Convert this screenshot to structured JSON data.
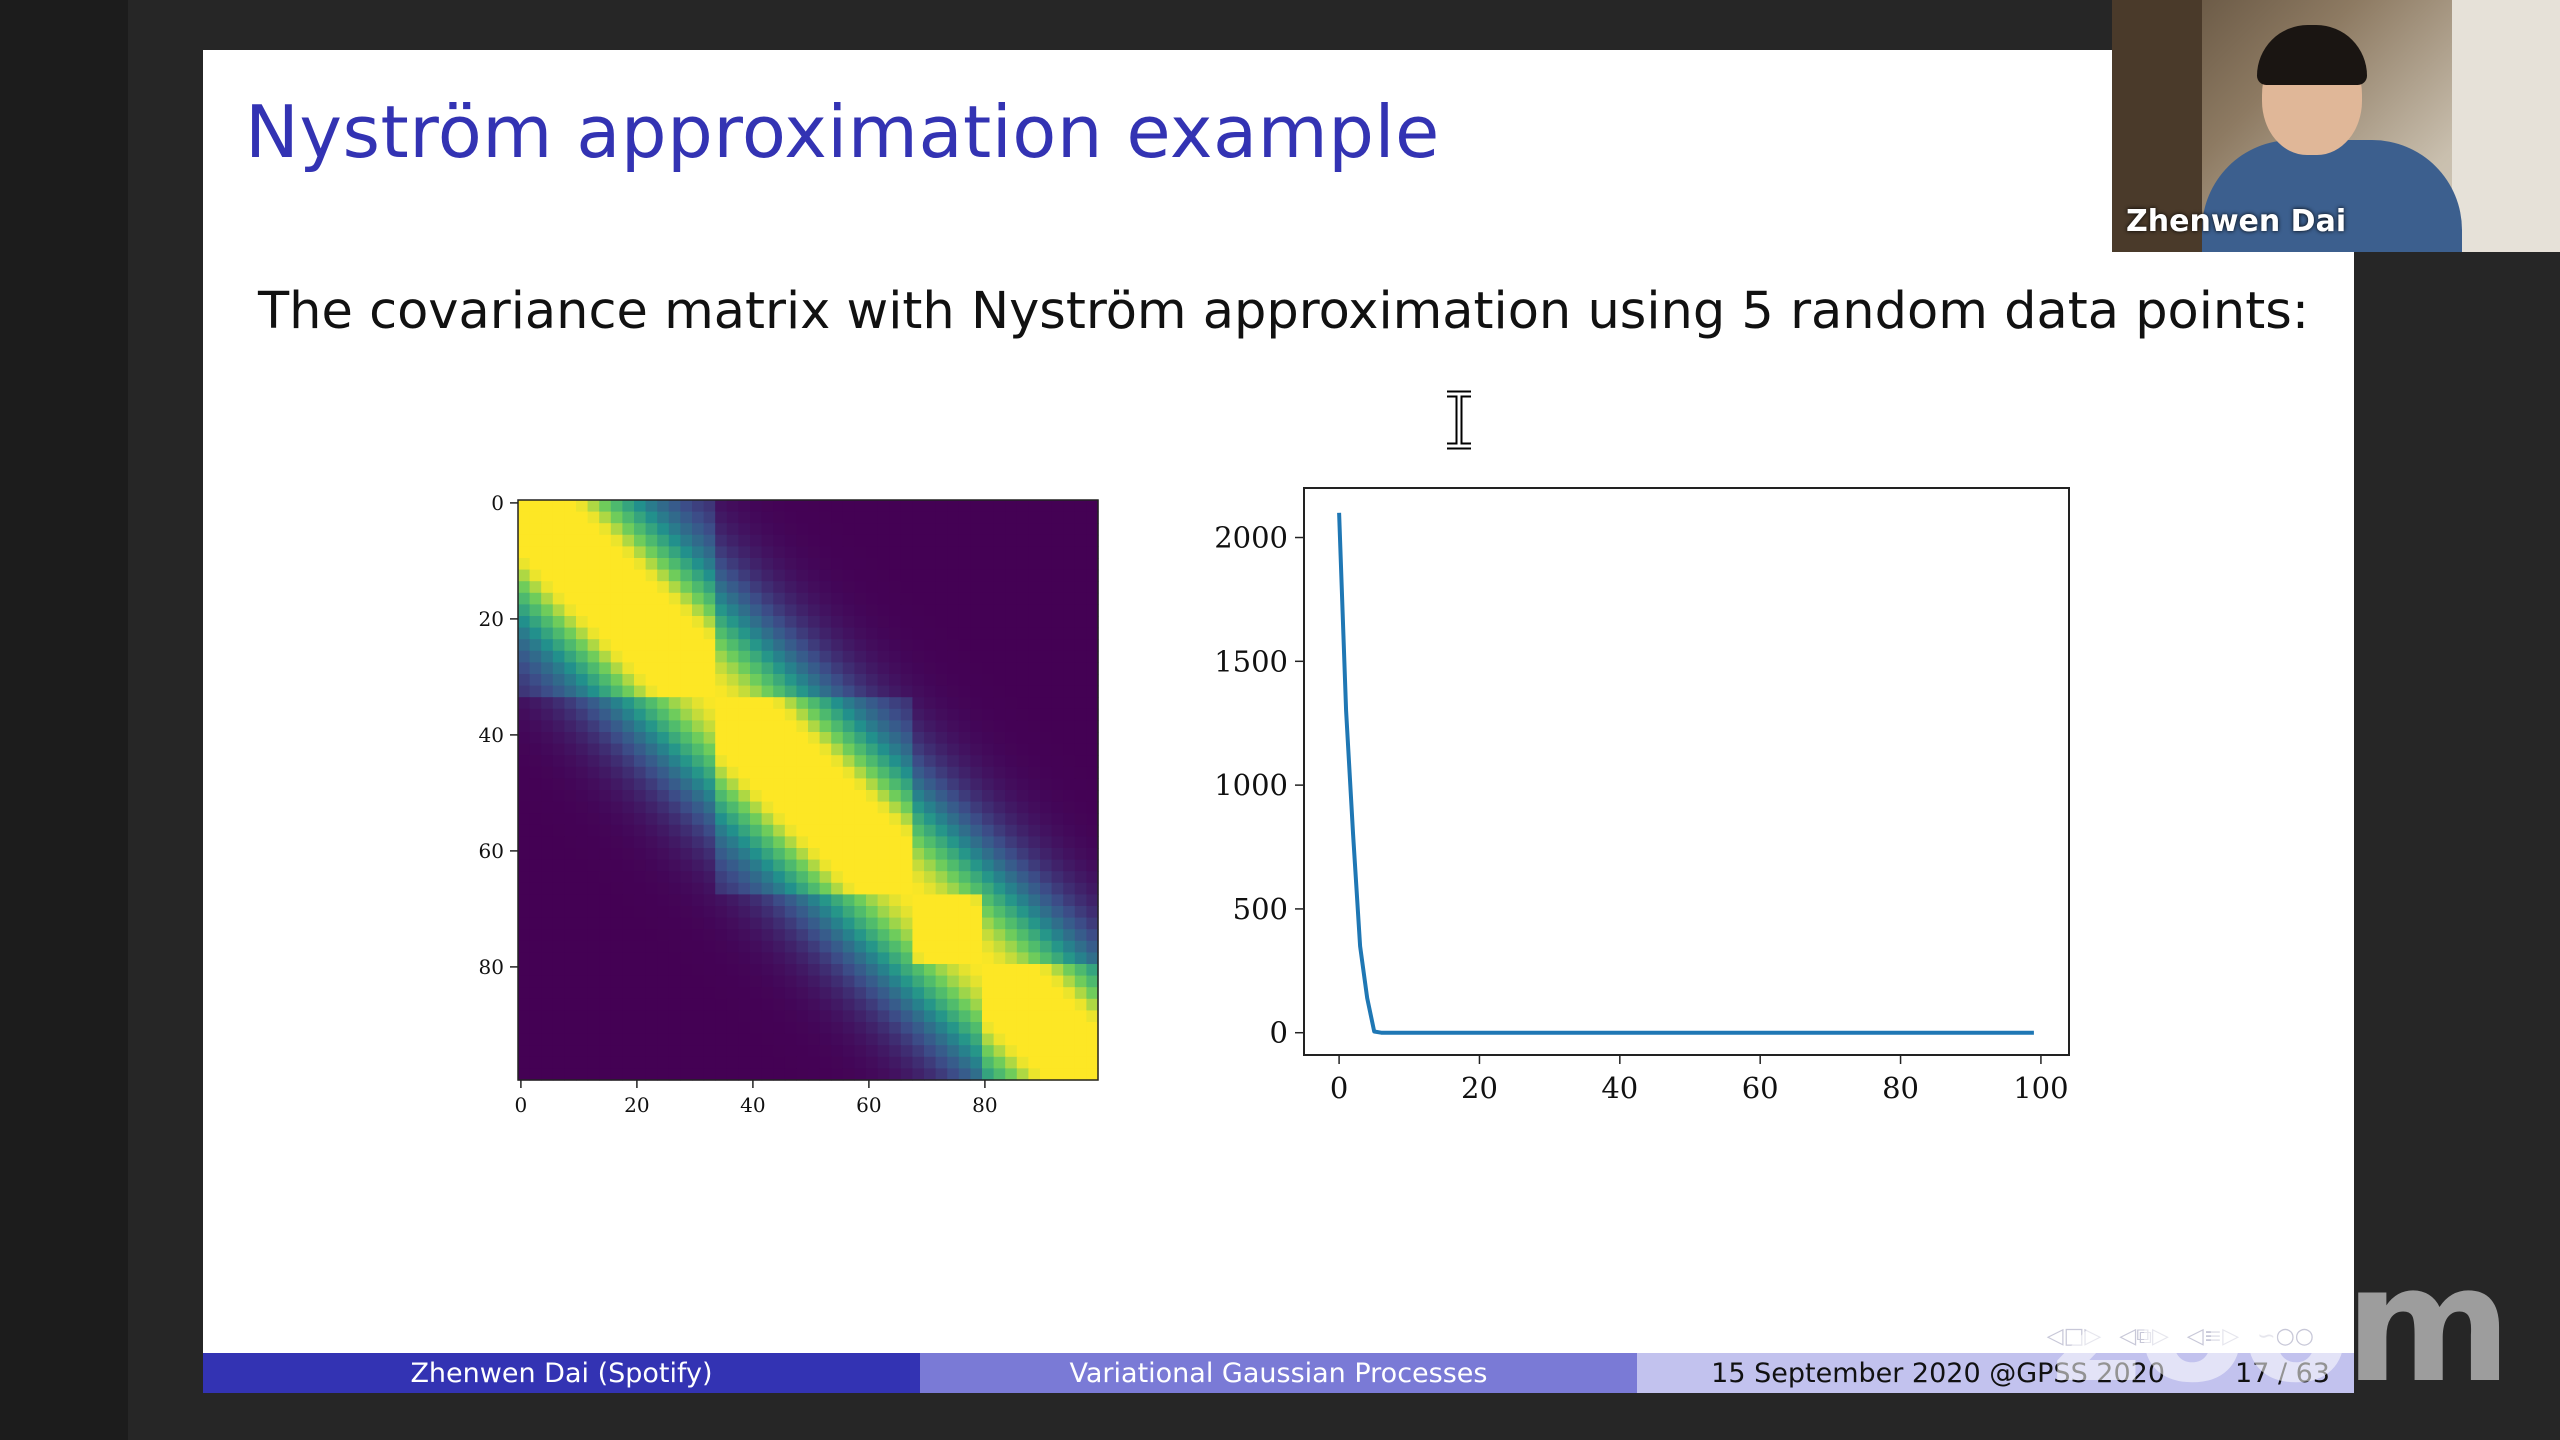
{
  "slide": {
    "title": "Nyström approximation example",
    "text": "The covariance matrix with Nyström approximation using 5 random data points:"
  },
  "heatmap": {
    "x_ticks": [
      "0",
      "20",
      "40",
      "60",
      "80"
    ],
    "y_ticks": [
      "0",
      "20",
      "40",
      "60",
      "80"
    ],
    "size": 100,
    "blocks": [
      [
        0,
        33
      ],
      [
        33,
        67
      ],
      [
        67,
        80
      ],
      [
        80,
        100
      ]
    ],
    "colormap": [
      "#440154",
      "#3b528b",
      "#21918c",
      "#5ec962",
      "#fde725"
    ]
  },
  "chart_data": {
    "type": "line",
    "x": [
      0,
      1,
      2,
      3,
      4,
      5,
      6,
      10,
      20,
      40,
      60,
      80,
      99
    ],
    "y": [
      2100,
      1300,
      800,
      350,
      140,
      5,
      0,
      0,
      0,
      0,
      0,
      0,
      0
    ],
    "xlim": [
      -5,
      104
    ],
    "ylim": [
      -90,
      2200
    ],
    "x_ticks": [
      0,
      20,
      40,
      60,
      80,
      100
    ],
    "y_ticks": [
      0,
      500,
      1000,
      1500,
      2000
    ],
    "color": "#1f77b4"
  },
  "footer": {
    "author": "Zhenwen Dai  (Spotify)",
    "title": "Variational Gaussian Processes",
    "date": "15 September 2020 @GPSS 2020",
    "page": "17 / 63"
  },
  "video": {
    "name": "Zhenwen Dai"
  },
  "watermark": "zoom"
}
